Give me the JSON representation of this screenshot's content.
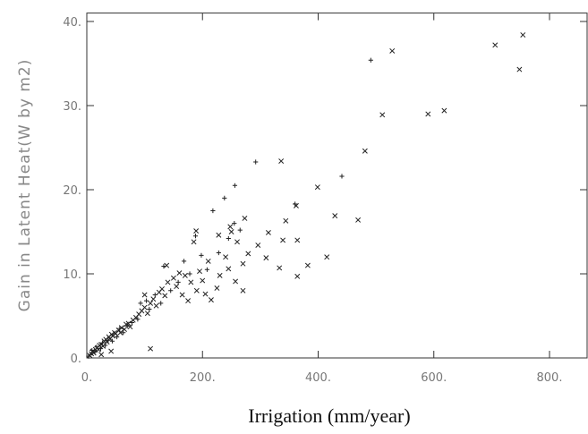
{
  "chart_data": {
    "type": "scatter",
    "x_label": "Irrigation (mm/year)",
    "y_label": "Gain in Latent Heat(W by m2)",
    "xlim": [
      0,
      865
    ],
    "ylim": [
      0,
      41
    ],
    "xticks": [
      {
        "value": 0,
        "label": "0."
      },
      {
        "value": 200,
        "label": "200."
      },
      {
        "value": 400,
        "label": "400."
      },
      {
        "value": 600,
        "label": "600."
      },
      {
        "value": 800,
        "label": "800."
      }
    ],
    "yticks": [
      {
        "value": 0,
        "label": "0."
      },
      {
        "value": 10,
        "label": "10."
      },
      {
        "value": 20,
        "label": "20."
      },
      {
        "value": 30,
        "label": "30."
      },
      {
        "value": 40,
        "label": "40."
      }
    ],
    "series": [
      {
        "marker": "x",
        "color": "#222",
        "x": [
          528,
          706,
          754,
          748,
          511,
          590,
          618,
          481,
          399,
          429,
          469,
          415,
          336,
          382,
          364,
          362,
          364,
          344,
          339,
          314,
          310,
          333,
          296,
          279,
          270,
          257,
          245,
          228,
          248,
          273,
          189,
          138,
          110,
          5,
          8,
          10,
          12,
          15,
          18,
          20,
          22,
          25,
          28,
          30,
          33,
          35,
          38,
          40,
          43,
          45,
          48,
          50,
          55,
          58,
          60,
          65,
          68,
          72,
          75,
          80,
          85,
          90,
          95,
          100,
          100,
          105,
          110,
          115,
          120,
          125,
          130,
          135,
          140,
          150,
          155,
          160,
          165,
          170,
          175,
          180,
          185,
          190,
          195,
          200,
          205,
          210,
          215,
          225,
          230,
          240,
          250,
          260,
          270,
          42,
          25
        ],
        "y": [
          36.5,
          37.2,
          38.4,
          34.3,
          28.9,
          29.0,
          29.4,
          24.6,
          20.3,
          16.9,
          16.4,
          12.0,
          23.4,
          11.0,
          14.0,
          18.1,
          9.7,
          16.3,
          14.0,
          14.9,
          11.9,
          10.7,
          13.4,
          12.4,
          8.0,
          9.1,
          10.6,
          14.6,
          15.6,
          16.6,
          15.1,
          11.0,
          1.1,
          0.3,
          0.5,
          0.8,
          0.6,
          1.0,
          1.2,
          1.0,
          1.5,
          1.6,
          1.4,
          2.0,
          2.2,
          1.9,
          2.5,
          2.3,
          2.8,
          2.6,
          3.0,
          2.9,
          3.3,
          3.0,
          3.6,
          3.4,
          4.0,
          4.1,
          3.7,
          4.5,
          4.8,
          5.2,
          5.6,
          6.0,
          7.5,
          5.3,
          6.5,
          7.0,
          6.2,
          7.8,
          8.2,
          7.4,
          9.0,
          9.5,
          8.5,
          10.1,
          7.5,
          9.8,
          6.8,
          9.0,
          13.8,
          8.0,
          10.3,
          9.2,
          7.6,
          11.5,
          6.9,
          8.3,
          9.8,
          12.0,
          15.0,
          13.8,
          11.2,
          0.8,
          0.4
        ]
      },
      {
        "marker": "+",
        "color": "#222",
        "x": [
          3,
          6,
          9,
          14,
          17,
          24,
          27,
          32,
          37,
          44,
          52,
          57,
          63,
          70,
          78,
          88,
          93,
          103,
          108,
          118,
          128,
          133,
          145,
          158,
          168,
          178,
          188,
          198,
          208,
          218,
          228,
          238,
          245,
          255,
          265,
          292,
          256,
          491,
          441,
          360
        ],
        "y": [
          0.2,
          0.4,
          0.9,
          0.7,
          1.3,
          1.1,
          1.8,
          1.5,
          2.1,
          2.0,
          2.5,
          3.5,
          3.0,
          3.8,
          4.2,
          4.6,
          6.5,
          6.8,
          5.8,
          7.5,
          6.5,
          10.9,
          8.0,
          9.0,
          11.5,
          10.0,
          14.5,
          12.2,
          10.5,
          17.5,
          12.5,
          19.0,
          14.2,
          16.0,
          15.2,
          23.3,
          20.5,
          35.4,
          21.6,
          18.3
        ]
      }
    ]
  }
}
